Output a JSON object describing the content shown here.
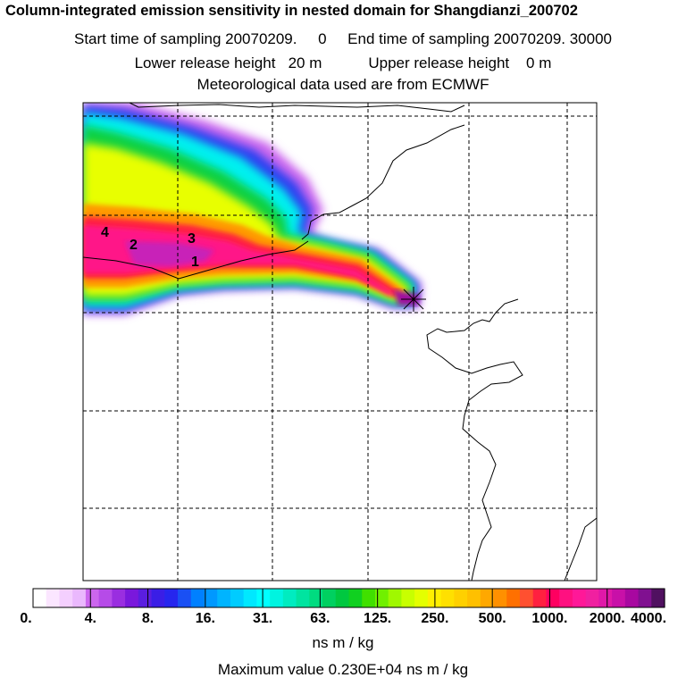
{
  "header": {
    "title": "Column-integrated emission sensitivity in nested domain for Shangdianzi_200702",
    "sampling_line": "Start time of sampling 20070209.     0     End time of sampling 20070209. 30000",
    "release_line": "Lower release height   20 m           Upper release height    0 m",
    "met_line": "Meteorological data used are from ECMWF"
  },
  "map": {
    "source_labels": [
      "1",
      "2",
      "3",
      "4"
    ],
    "receptor_marker": "receptor-cross"
  },
  "colorbar": {
    "tick_labels": [
      "0.",
      "4.",
      "8.",
      "16.",
      "31.",
      "63.",
      "125.",
      "250.",
      "500.",
      "1000.",
      "2000.",
      "4000."
    ],
    "colors": [
      "#ffffff",
      "#fbe6ff",
      "#f4cffe",
      "#eab8fd",
      "#cc66ee",
      "#b64be8",
      "#9a2ee0",
      "#7a18dc",
      "#5a1ee0",
      "#3a1ee6",
      "#2626ee",
      "#1a50f4",
      "#0080ff",
      "#0098ff",
      "#00b4ff",
      "#00ccff",
      "#00e8ff",
      "#00ffff",
      "#00f4e0",
      "#00ecc0",
      "#00e4a0",
      "#00dc80",
      "#00d060",
      "#00c840",
      "#10d020",
      "#40e000",
      "#70f000",
      "#a0f800",
      "#c8ff00",
      "#e4ff00",
      "#fff000",
      "#ffe000",
      "#ffd000",
      "#ffc000",
      "#ffa800",
      "#ff9000",
      "#ff7000",
      "#ff5030",
      "#ff2040",
      "#ff0060",
      "#ff1080",
      "#ff1898",
      "#f020a0",
      "#e018a8",
      "#c810a8",
      "#a808a0",
      "#801090",
      "#501060"
    ],
    "units": "ns m / kg"
  },
  "footer": {
    "max_value": "Maximum value  0.230E+04 ns m / kg"
  }
}
